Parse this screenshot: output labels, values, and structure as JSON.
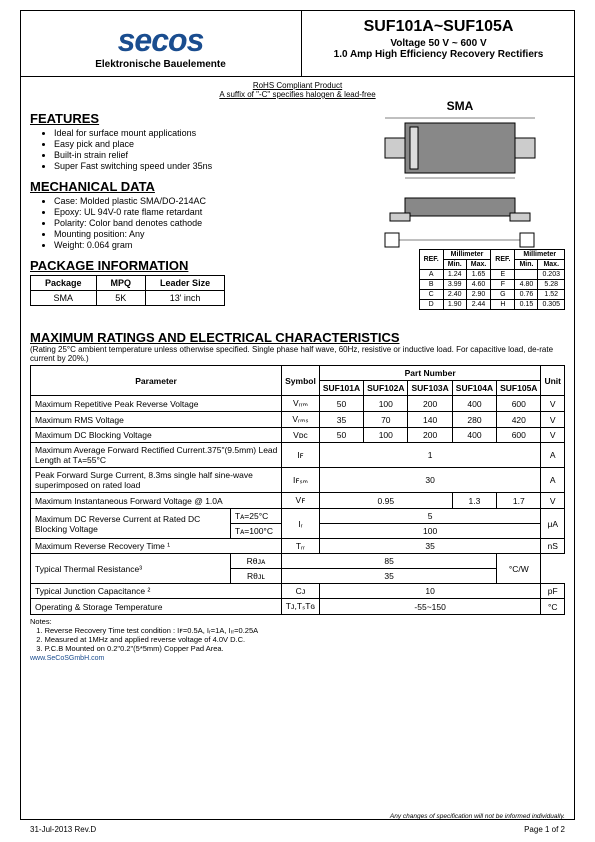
{
  "header": {
    "logo": "secos",
    "logo_sub": "Elektronische Bauelemente",
    "title": "SUF101A~SUF105A",
    "subtitle1": "Voltage 50 V ~ 600 V",
    "subtitle2": "1.0 Amp High Efficiency Recovery Rectifiers"
  },
  "rohs": {
    "line1": "RoHS Compliant Product",
    "line2": "A suffix of \"-C\" specifies halogen & lead-free"
  },
  "features": {
    "title": "FEATURES",
    "items": [
      "Ideal for surface mount applications",
      "Easy pick and place",
      "Built-in strain relief",
      "Super Fast switching speed under 35ns"
    ]
  },
  "mechanical": {
    "title": "MECHANICAL DATA",
    "items": [
      "Case: Molded plastic SMA/DO-214AC",
      "Epoxy: UL 94V-0 rate flame retardant",
      "Polarity: Color band denotes cathode",
      "Mounting position: Any",
      "Weight: 0.064 gram"
    ]
  },
  "package": {
    "title": "PACKAGE INFORMATION",
    "headers": [
      "Package",
      "MPQ",
      "Leader Size"
    ],
    "row": [
      "SMA",
      "5K",
      "13' inch"
    ]
  },
  "sma_label": "SMA",
  "dimensions": {
    "header_ref": "REF.",
    "header_unit": "Millimeter",
    "header_min": "Min.",
    "header_max": "Max.",
    "rows": [
      [
        "A",
        "1.24",
        "1.65",
        "E",
        "",
        "0.203"
      ],
      [
        "B",
        "3.99",
        "4.60",
        "F",
        "4.80",
        "5.28"
      ],
      [
        "C",
        "2.40",
        "2.90",
        "G",
        "0.76",
        "1.52"
      ],
      [
        "D",
        "1.90",
        "2.44",
        "H",
        "0.15",
        "0.305"
      ]
    ]
  },
  "characteristics": {
    "title": "MAXIMUM RATINGS AND ELECTRICAL CHARACTERISTICS",
    "note": "(Rating 25°C ambient temperature unless otherwise specified. Single phase half wave, 60Hz, resistive or inductive load. For capacitive load, de-rate current by 20%.)",
    "headers": {
      "parameter": "Parameter",
      "symbol": "Symbol",
      "part_number": "Part Number",
      "parts": [
        "SUF101A",
        "SUF102A",
        "SUF103A",
        "SUF104A",
        "SUF105A"
      ],
      "unit": "Unit"
    },
    "rows": [
      {
        "param": "Maximum Repetitive Peak Reverse Voltage",
        "symbol": "Vᵣᵣₘ",
        "values": [
          "50",
          "100",
          "200",
          "400",
          "600"
        ],
        "unit": "V"
      },
      {
        "param": "Maximum RMS Voltage",
        "symbol": "Vᵣₘₛ",
        "values": [
          "35",
          "70",
          "140",
          "280",
          "420"
        ],
        "unit": "V"
      },
      {
        "param": "Maximum DC Blocking Voltage",
        "symbol": "Vᴅᴄ",
        "values": [
          "50",
          "100",
          "200",
          "400",
          "600"
        ],
        "unit": "V"
      },
      {
        "param": "Maximum Average Forward Rectified Current.375\"(9.5mm) Lead Length at Tᴀ=55°C",
        "symbol": "Iꜰ",
        "values": [
          "1"
        ],
        "unit": "A",
        "span": 5
      },
      {
        "param": "Peak Forward Surge Current, 8.3ms single half sine-wave superimposed on rated load",
        "symbol": "Iꜰₛₘ",
        "values": [
          "30"
        ],
        "unit": "A",
        "span": 5
      },
      {
        "param": "Maximum Instantaneous Forward Voltage @ 1.0A",
        "symbol": "Vꜰ",
        "values": [
          "0.95",
          "1.3",
          "1.7"
        ],
        "unit": "V",
        "spans": [
          3,
          1,
          1
        ]
      },
      {
        "param": "Maximum DC Reverse Current at Rated DC Blocking Voltage",
        "subcond": "Tᴀ=25°C",
        "symbol": "Iᵣ",
        "values": [
          "5"
        ],
        "unit": "μA",
        "span": 5,
        "group": 1
      },
      {
        "param": "",
        "subcond": "Tᴀ=100°C",
        "symbol": "",
        "values": [
          "100"
        ],
        "unit": "",
        "span": 5,
        "group": 2
      },
      {
        "param": "Maximum Reverse Recovery Time ¹",
        "symbol": "Tᵣᵣ",
        "values": [
          "35"
        ],
        "unit": "nS",
        "span": 5
      },
      {
        "param": "Typical Thermal Resistance³",
        "symbol": "Rθᴊᴀ",
        "values": [
          "85"
        ],
        "unit": "°C/W",
        "span": 5,
        "group": 1
      },
      {
        "param": "",
        "symbol": "Rθᴊʟ",
        "values": [
          "35"
        ],
        "unit": "",
        "span": 5,
        "group": 2
      },
      {
        "param": "Typical Junction Capacitance ²",
        "symbol": "Cᴊ",
        "values": [
          "10"
        ],
        "unit": "pF",
        "span": 5
      },
      {
        "param": "Operating & Storage Temperature",
        "symbol": "Tᴊ,TₛTɢ",
        "values": [
          "-55~150"
        ],
        "unit": "°C",
        "span": 5
      }
    ]
  },
  "notes": {
    "title": "Notes:",
    "items": [
      "1. Reverse Recovery Time test condition : Iꜰ=0.5A, Iᵣ=1A, Iᵣᵣ=0.25A",
      "2. Measured at 1MHz and applied reverse voltage of 4.0V D.C.",
      "3. P.C.B Mounted on 0.2\"0.2\"(5*5mm) Copper Pad Area."
    ]
  },
  "website": "www.SeCoSGmbH.com",
  "footer": {
    "left": "31-Jul-2013 Rev.D",
    "right": "Page 1 of 2",
    "disclaimer": "Any changes of specification will not be informed individually."
  }
}
